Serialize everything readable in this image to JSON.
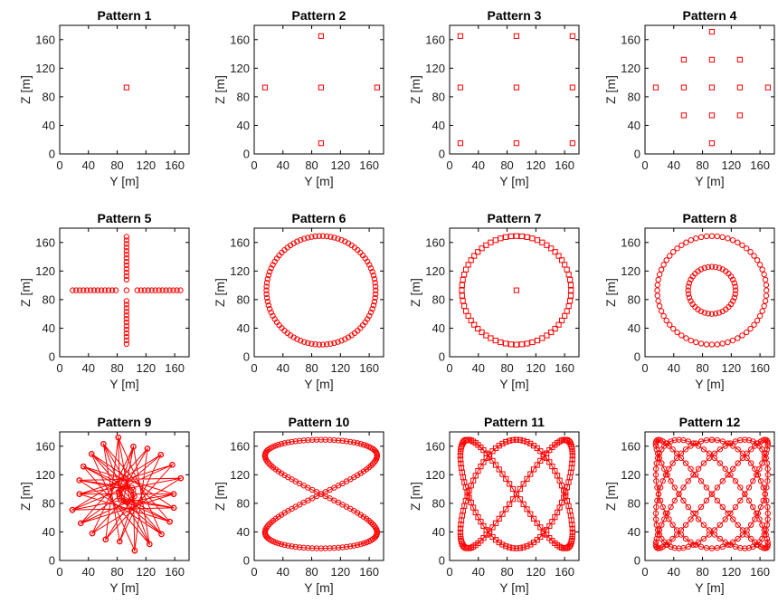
{
  "figure": {
    "marker_color": "#ff0000",
    "axis_color": "#000000",
    "x_label": "Y [m]",
    "y_label": "Z [m]",
    "x_ticks": [
      "0",
      "40",
      "80",
      "120",
      "160"
    ],
    "y_ticks": [
      "0",
      "40",
      "80",
      "120",
      "160"
    ]
  },
  "chart_data": [
    {
      "type": "scatter",
      "title": "Pattern 1",
      "xlabel": "Y [m]",
      "ylabel": "Z [m]",
      "xlim": [
        0,
        180
      ],
      "ylim": [
        0,
        180
      ],
      "grid": false,
      "marker": "square",
      "points": [
        [
          93,
          93
        ]
      ]
    },
    {
      "type": "scatter",
      "title": "Pattern 2",
      "xlabel": "Y [m]",
      "ylabel": "Z [m]",
      "xlim": [
        0,
        180
      ],
      "ylim": [
        0,
        180
      ],
      "grid": false,
      "marker": "square",
      "points": [
        [
          93,
          93
        ],
        [
          93,
          165
        ],
        [
          93,
          15
        ],
        [
          15,
          93
        ],
        [
          171,
          93
        ]
      ]
    },
    {
      "type": "scatter",
      "title": "Pattern 3",
      "xlabel": "Y [m]",
      "ylabel": "Z [m]",
      "xlim": [
        0,
        180
      ],
      "ylim": [
        0,
        180
      ],
      "grid": false,
      "marker": "square",
      "points": [
        [
          15,
          165
        ],
        [
          93,
          165
        ],
        [
          171,
          165
        ],
        [
          15,
          93
        ],
        [
          93,
          93
        ],
        [
          171,
          93
        ],
        [
          15,
          15
        ],
        [
          93,
          15
        ],
        [
          171,
          15
        ]
      ]
    },
    {
      "type": "scatter",
      "title": "Pattern 4",
      "xlabel": "Y [m]",
      "ylabel": "Z [m]",
      "xlim": [
        0,
        180
      ],
      "ylim": [
        0,
        180
      ],
      "grid": false,
      "marker": "square",
      "points": [
        [
          93,
          171
        ],
        [
          54,
          132
        ],
        [
          93,
          132
        ],
        [
          132,
          132
        ],
        [
          15,
          93
        ],
        [
          54,
          93
        ],
        [
          93,
          93
        ],
        [
          132,
          93
        ],
        [
          171,
          93
        ],
        [
          54,
          54
        ],
        [
          93,
          54
        ],
        [
          132,
          54
        ],
        [
          93,
          15
        ]
      ]
    },
    {
      "type": "scatter",
      "title": "Pattern 5",
      "xlabel": "Y [m]",
      "ylabel": "Z [m]",
      "xlim": [
        0,
        180
      ],
      "ylim": [
        0,
        180
      ],
      "grid": false,
      "marker": "circle",
      "generator": {
        "kind": "cross",
        "center": [
          93,
          93
        ],
        "inner": 15,
        "outer": 75,
        "step": 5
      }
    },
    {
      "type": "scatter",
      "title": "Pattern 6",
      "xlabel": "Y [m]",
      "ylabel": "Z [m]",
      "xlim": [
        0,
        180
      ],
      "ylim": [
        0,
        180
      ],
      "grid": false,
      "marker": "circle",
      "generator": {
        "kind": "rings",
        "center": [
          93,
          93
        ],
        "rings": [
          {
            "r": 76,
            "n": 90
          }
        ]
      }
    },
    {
      "type": "scatter",
      "title": "Pattern 7",
      "xlabel": "Y [m]",
      "ylabel": "Z [m]",
      "xlim": [
        0,
        180
      ],
      "ylim": [
        0,
        180
      ],
      "grid": false,
      "marker": "square",
      "generator": {
        "kind": "rings",
        "center": [
          93,
          93
        ],
        "rings": [
          {
            "r": 76,
            "n": 64
          }
        ],
        "center_point": true
      }
    },
    {
      "type": "scatter",
      "title": "Pattern 8",
      "xlabel": "Y [m]",
      "ylabel": "Z [m]",
      "xlim": [
        0,
        180
      ],
      "ylim": [
        0,
        180
      ],
      "grid": false,
      "marker": "circle",
      "generator": {
        "kind": "rings",
        "center": [
          93,
          93
        ],
        "rings": [
          {
            "r": 76,
            "n": 64
          },
          {
            "r": 33,
            "n": 40
          }
        ]
      }
    },
    {
      "type": "line",
      "title": "Pattern 9",
      "xlabel": "Y [m]",
      "ylabel": "Z [m]",
      "xlim": [
        0,
        180
      ],
      "ylim": [
        0,
        180
      ],
      "grid": false,
      "marker": "circle",
      "generator": {
        "kind": "rose",
        "center": [
          93,
          93
        ],
        "r": 80,
        "n": 22,
        "skip": 9
      }
    },
    {
      "type": "line",
      "title": "Pattern 10",
      "xlabel": "Y [m]",
      "ylabel": "Z [m]",
      "xlim": [
        0,
        180
      ],
      "ylim": [
        0,
        180
      ],
      "grid": false,
      "marker": "circle",
      "generator": {
        "kind": "lissajous",
        "center": [
          93,
          93
        ],
        "amp": [
          78,
          76
        ],
        "fx": 2,
        "fy": 1,
        "phase": 0,
        "n": 160
      }
    },
    {
      "type": "line",
      "title": "Pattern 11",
      "xlabel": "Y [m]",
      "ylabel": "Z [m]",
      "xlim": [
        0,
        180
      ],
      "ylim": [
        0,
        180
      ],
      "grid": false,
      "marker": "square",
      "generator": {
        "kind": "lissajous",
        "center": [
          93,
          93
        ],
        "amp": [
          78,
          76
        ],
        "fx": 2,
        "fy": 3,
        "phase": 1.5708,
        "n": 200
      }
    },
    {
      "type": "line",
      "title": "Pattern 12",
      "xlabel": "Y [m]",
      "ylabel": "Z [m]",
      "xlim": [
        0,
        180
      ],
      "ylim": [
        0,
        180
      ],
      "grid": false,
      "marker": "circle",
      "generator": {
        "kind": "lissajous",
        "center": [
          93,
          93
        ],
        "amp": [
          78,
          76
        ],
        "fx": 4,
        "fy": 5,
        "phase": 1.5708,
        "n": 260
      }
    }
  ]
}
